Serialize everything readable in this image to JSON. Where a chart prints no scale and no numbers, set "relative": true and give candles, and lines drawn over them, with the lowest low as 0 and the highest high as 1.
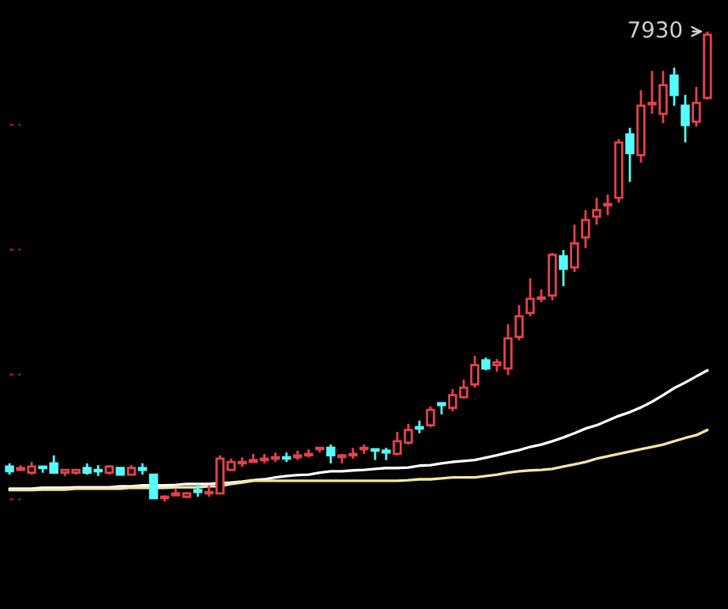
{
  "chart_data": {
    "type": "candlestick",
    "relative": true,
    "categories": [
      null,
      null,
      null,
      null,
      null,
      null,
      null,
      null,
      null,
      null,
      null,
      null,
      null,
      null,
      null,
      null,
      null,
      null,
      null,
      null,
      null,
      null,
      null,
      null,
      null,
      null,
      null,
      null,
      null,
      null,
      null,
      null,
      null,
      null,
      null,
      null,
      null,
      null,
      null,
      null,
      null,
      null,
      null,
      null,
      null,
      null,
      null,
      null,
      null,
      null,
      null,
      null,
      null,
      null,
      null,
      null,
      null,
      null,
      null,
      null,
      null,
      null,
      null,
      null
    ],
    "ohlc": [
      [
        0.074,
        0.081,
        0.057,
        0.064
      ],
      [
        0.067,
        0.077,
        0.067,
        0.071
      ],
      [
        0.061,
        0.084,
        0.057,
        0.074
      ],
      [
        0.074,
        0.074,
        0.061,
        0.071
      ],
      [
        0.081,
        0.098,
        0.061,
        0.061
      ],
      [
        0.061,
        0.067,
        0.054,
        0.067
      ],
      [
        0.061,
        0.067,
        0.057,
        0.067
      ],
      [
        0.071,
        0.081,
        0.057,
        0.061
      ],
      [
        0.067,
        0.077,
        0.054,
        0.064
      ],
      [
        0.061,
        0.077,
        0.057,
        0.074
      ],
      [
        0.071,
        0.071,
        0.057,
        0.057
      ],
      [
        0.057,
        0.077,
        0.057,
        0.071
      ],
      [
        0.071,
        0.081,
        0.057,
        0.067
      ],
      [
        0.057,
        0.057,
        0.007,
        0.007
      ],
      [
        0.007,
        0.013,
        0.0,
        0.01
      ],
      [
        0.013,
        0.027,
        0.013,
        0.017
      ],
      [
        0.01,
        0.02,
        0.007,
        0.017
      ],
      [
        0.024,
        0.037,
        0.01,
        0.02
      ],
      [
        0.017,
        0.034,
        0.01,
        0.02
      ],
      [
        0.017,
        0.098,
        0.017,
        0.091
      ],
      [
        0.067,
        0.091,
        0.067,
        0.084
      ],
      [
        0.081,
        0.094,
        0.074,
        0.084
      ],
      [
        0.084,
        0.101,
        0.084,
        0.088
      ],
      [
        0.088,
        0.101,
        0.081,
        0.091
      ],
      [
        0.091,
        0.104,
        0.084,
        0.094
      ],
      [
        0.094,
        0.104,
        0.084,
        0.091
      ],
      [
        0.094,
        0.108,
        0.088,
        0.098
      ],
      [
        0.098,
        0.111,
        0.094,
        0.101
      ],
      [
        0.111,
        0.114,
        0.104,
        0.114
      ],
      [
        0.114,
        0.121,
        0.081,
        0.098
      ],
      [
        0.094,
        0.101,
        0.081,
        0.098
      ],
      [
        0.098,
        0.114,
        0.091,
        0.101
      ],
      [
        0.111,
        0.121,
        0.101,
        0.114
      ],
      [
        0.111,
        0.111,
        0.088,
        0.108
      ],
      [
        0.108,
        0.114,
        0.088,
        0.104
      ],
      [
        0.101,
        0.148,
        0.098,
        0.128
      ],
      [
        0.125,
        0.165,
        0.121,
        0.152
      ],
      [
        0.158,
        0.172,
        0.145,
        0.155
      ],
      [
        0.162,
        0.202,
        0.158,
        0.195
      ],
      [
        0.209,
        0.209,
        0.185,
        0.205
      ],
      [
        0.199,
        0.239,
        0.192,
        0.226
      ],
      [
        0.222,
        0.259,
        0.219,
        0.242
      ],
      [
        0.249,
        0.31,
        0.242,
        0.29
      ],
      [
        0.3,
        0.306,
        0.279,
        0.283
      ],
      [
        0.29,
        0.303,
        0.276,
        0.296
      ],
      [
        0.283,
        0.377,
        0.269,
        0.347
      ],
      [
        0.35,
        0.418,
        0.343,
        0.394
      ],
      [
        0.401,
        0.475,
        0.394,
        0.431
      ],
      [
        0.431,
        0.451,
        0.424,
        0.434
      ],
      [
        0.438,
        0.529,
        0.428,
        0.525
      ],
      [
        0.522,
        0.535,
        0.458,
        0.495
      ],
      [
        0.498,
        0.589,
        0.488,
        0.549
      ],
      [
        0.562,
        0.62,
        0.539,
        0.599
      ],
      [
        0.606,
        0.646,
        0.589,
        0.62
      ],
      [
        0.63,
        0.653,
        0.609,
        0.633
      ],
      [
        0.646,
        0.771,
        0.636,
        0.764
      ],
      [
        0.781,
        0.795,
        0.68,
        0.741
      ],
      [
        0.737,
        0.875,
        0.721,
        0.842
      ],
      [
        0.845,
        0.916,
        0.825,
        0.848
      ],
      [
        0.825,
        0.916,
        0.805,
        0.886
      ],
      [
        0.906,
        0.923,
        0.842,
        0.865
      ],
      [
        0.842,
        0.865,
        0.764,
        0.801
      ],
      [
        0.808,
        0.882,
        0.798,
        0.848
      ],
      [
        0.859,
        1.0,
        0.855,
        0.993
      ]
    ],
    "colors": [
      "#54fcfc",
      "#e8414a",
      "#e8414a",
      "#54fcfc",
      "#54fcfc",
      "#e8414a",
      "#e8414a",
      "#54fcfc",
      "#54fcfc",
      "#e8414a",
      "#54fcfc",
      "#e8414a",
      "#54fcfc",
      "#54fcfc",
      "#e8414a",
      "#e8414a",
      "#e8414a",
      "#54fcfc",
      "#e8414a",
      "#e8414a",
      "#e8414a",
      "#e8414a",
      "#e8414a",
      "#e8414a",
      "#e8414a",
      "#54fcfc",
      "#e8414a",
      "#e8414a",
      "#e8414a",
      "#54fcfc",
      "#e8414a",
      "#e8414a",
      "#e8414a",
      "#54fcfc",
      "#54fcfc",
      "#e8414a",
      "#e8414a",
      "#54fcfc",
      "#e8414a",
      "#54fcfc",
      "#e8414a",
      "#e8414a",
      "#e8414a",
      "#54fcfc",
      "#e8414a",
      "#e8414a",
      "#e8414a",
      "#e8414a",
      "#e8414a",
      "#e8414a",
      "#54fcfc",
      "#e8414a",
      "#e8414a",
      "#e8414a",
      "#e8414a",
      "#e8414a",
      "#54fcfc",
      "#e8414a",
      "#e8414a",
      "#e8414a",
      "#54fcfc",
      "#54fcfc",
      "#e8414a",
      "#e8414a"
    ],
    "series": [
      {
        "type": "line",
        "color": "#ffffff",
        "values": [
          0.027,
          0.027,
          0.027,
          0.029,
          0.029,
          0.029,
          0.03,
          0.03,
          0.03,
          0.03,
          0.032,
          0.032,
          0.034,
          0.034,
          0.034,
          0.035,
          0.037,
          0.037,
          0.037,
          0.039,
          0.04,
          0.042,
          0.045,
          0.047,
          0.051,
          0.054,
          0.056,
          0.057,
          0.061,
          0.064,
          0.064,
          0.066,
          0.067,
          0.069,
          0.071,
          0.071,
          0.072,
          0.076,
          0.077,
          0.081,
          0.084,
          0.086,
          0.088,
          0.093,
          0.098,
          0.104,
          0.109,
          0.116,
          0.121,
          0.128,
          0.136,
          0.145,
          0.155,
          0.162,
          0.172,
          0.182,
          0.19,
          0.2,
          0.212,
          0.226,
          0.241,
          0.253,
          0.266,
          0.279
        ]
      },
      {
        "type": "line",
        "color": "#f3e6a2",
        "values": [
          0.024,
          0.024,
          0.024,
          0.025,
          0.025,
          0.025,
          0.027,
          0.027,
          0.027,
          0.027,
          0.027,
          0.029,
          0.029,
          0.029,
          0.029,
          0.03,
          0.03,
          0.03,
          0.032,
          0.032,
          0.037,
          0.04,
          0.044,
          0.044,
          0.044,
          0.044,
          0.044,
          0.044,
          0.044,
          0.044,
          0.044,
          0.044,
          0.044,
          0.044,
          0.044,
          0.044,
          0.045,
          0.047,
          0.047,
          0.049,
          0.051,
          0.051,
          0.051,
          0.054,
          0.057,
          0.061,
          0.064,
          0.066,
          0.067,
          0.069,
          0.074,
          0.079,
          0.084,
          0.091,
          0.096,
          0.101,
          0.106,
          0.111,
          0.116,
          0.121,
          0.128,
          0.135,
          0.141,
          0.152
        ]
      }
    ],
    "annotations": [
      "7930"
    ]
  }
}
